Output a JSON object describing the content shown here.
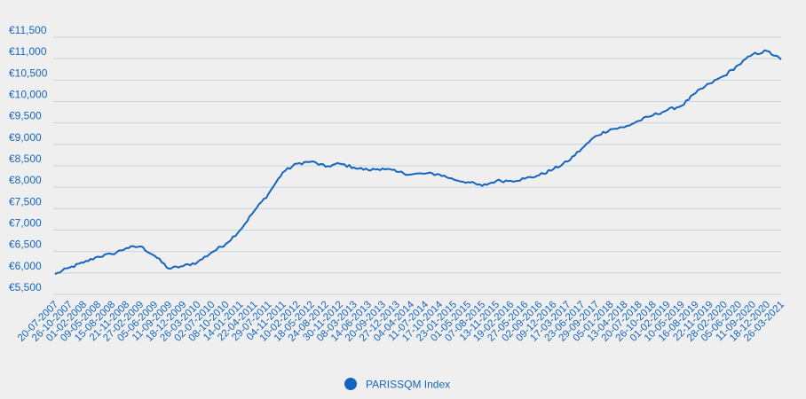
{
  "chart_data": {
    "type": "line",
    "title": "",
    "xlabel": "",
    "ylabel": "",
    "ylim": [
      5500,
      11500
    ],
    "y_ticks": [
      5500,
      6000,
      6500,
      7000,
      7500,
      8000,
      8500,
      9000,
      9500,
      10000,
      10500,
      11000,
      11500
    ],
    "y_tick_labels": [
      "€5,500",
      "€6,000",
      "€6,500",
      "€7,000",
      "€7,500",
      "€8,000",
      "€8,500",
      "€9,000",
      "€9,500",
      "€10,000",
      "€10,500",
      "€11,000",
      "€11,500"
    ],
    "x_tick_labels": [
      "20-07-2007",
      "26-10-2007",
      "01-02-2008",
      "09-05-2008",
      "15-08-2008",
      "21-11-2008",
      "27-02-2009",
      "05-06-2009",
      "11-09-2009",
      "18-12-2009",
      "26-03-2010",
      "02-07-2010",
      "08-10-2010",
      "14-01-2011",
      "22-04-2011",
      "29-07-2011",
      "04-11-2011",
      "10-02-2012",
      "18-05-2012",
      "24-08-2012",
      "30-11-2012",
      "08-03-2013",
      "14-06-2013",
      "20-09-2013",
      "27-12-2013",
      "04-04-2014",
      "11-07-2014",
      "17-10-2014",
      "23-01-2015",
      "01-05-2015",
      "07-08-2015",
      "13-11-2015",
      "19-02-2016",
      "27-05-2016",
      "02-09-2016",
      "09-12-2016",
      "17-03-2017",
      "23-06-2017",
      "29-09-2017",
      "05-01-2018",
      "13-04-2018",
      "20-07-2018",
      "26-10-2018",
      "01-02-2019",
      "10-05-2019",
      "16-08-2019",
      "22-11-2019",
      "28-02-2020",
      "05-06-2020",
      "11-09-2020",
      "18-12-2020",
      "26-03-2021"
    ],
    "legend": {
      "position": "bottom-center",
      "color": "#1565c0"
    },
    "grid": true,
    "series": [
      {
        "name": "PARISSQM Index",
        "color": "#1565c0",
        "x": [
          "20-07-2007",
          "26-10-2007",
          "01-02-2008",
          "09-05-2008",
          "15-08-2008",
          "21-11-2008",
          "27-02-2009",
          "05-06-2009",
          "11-09-2009",
          "18-12-2009",
          "26-03-2010",
          "02-07-2010",
          "08-10-2010",
          "14-01-2011",
          "22-04-2011",
          "29-07-2011",
          "04-11-2011",
          "10-02-2012",
          "18-05-2012",
          "24-08-2012",
          "30-11-2012",
          "08-03-2013",
          "14-06-2013",
          "20-09-2013",
          "27-12-2013",
          "04-04-2014",
          "11-07-2014",
          "17-10-2014",
          "23-01-2015",
          "01-05-2015",
          "07-08-2015",
          "13-11-2015",
          "19-02-2016",
          "27-05-2016",
          "02-09-2016",
          "09-12-2016",
          "17-03-2017",
          "23-06-2017",
          "29-09-2017",
          "05-01-2018",
          "13-04-2018",
          "20-07-2018",
          "26-10-2018",
          "01-02-2019",
          "10-05-2019",
          "16-08-2019",
          "22-11-2019",
          "28-02-2020",
          "05-06-2020",
          "11-09-2020",
          "18-12-2020",
          "26-03-2021"
        ],
        "values": [
          5970,
          6120,
          6240,
          6380,
          6440,
          6580,
          6620,
          6400,
          6100,
          6160,
          6250,
          6480,
          6680,
          7000,
          7450,
          7850,
          8350,
          8550,
          8600,
          8480,
          8550,
          8460,
          8400,
          8440,
          8360,
          8300,
          8320,
          8300,
          8180,
          8120,
          8030,
          8150,
          8150,
          8200,
          8280,
          8420,
          8600,
          8900,
          9200,
          9350,
          9400,
          9550,
          9680,
          9800,
          9900,
          10200,
          10420,
          10600,
          10850,
          11100,
          11180,
          10980
        ]
      }
    ]
  }
}
